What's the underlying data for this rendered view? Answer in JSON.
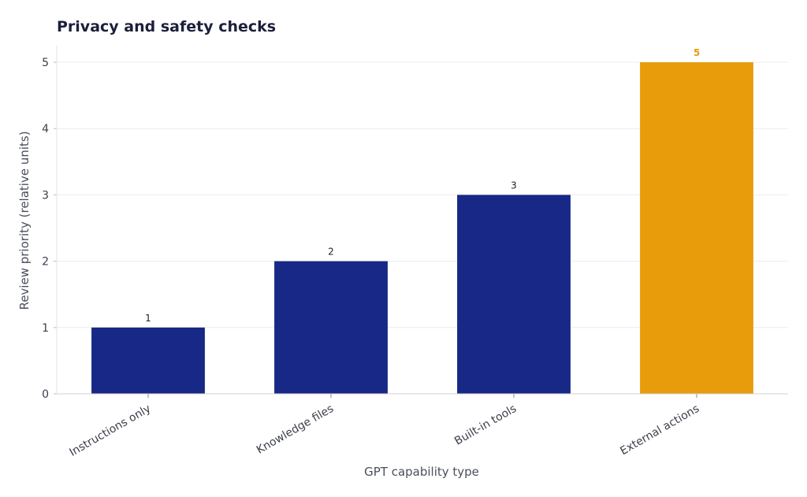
{
  "chart_data": {
    "type": "bar",
    "title": "Privacy and safety checks",
    "xlabel": "GPT capability type",
    "ylabel": "Review priority (relative units)",
    "categories": [
      "Instructions only",
      "Knowledge files",
      "Built-in tools",
      "External actions"
    ],
    "values": [
      1,
      2,
      3,
      5
    ],
    "data_labels": [
      "1",
      "2",
      "3",
      "5"
    ],
    "ylim": [
      0,
      5.25
    ],
    "yticks": [
      0,
      1,
      2,
      3,
      4,
      5
    ],
    "ytick_labels": [
      "0",
      "1",
      "2",
      "3",
      "4",
      "5"
    ],
    "grid": "horizontal",
    "colors": {
      "bar": "#172886",
      "highlight": "#e89c0c",
      "highlight_index": 3
    }
  }
}
